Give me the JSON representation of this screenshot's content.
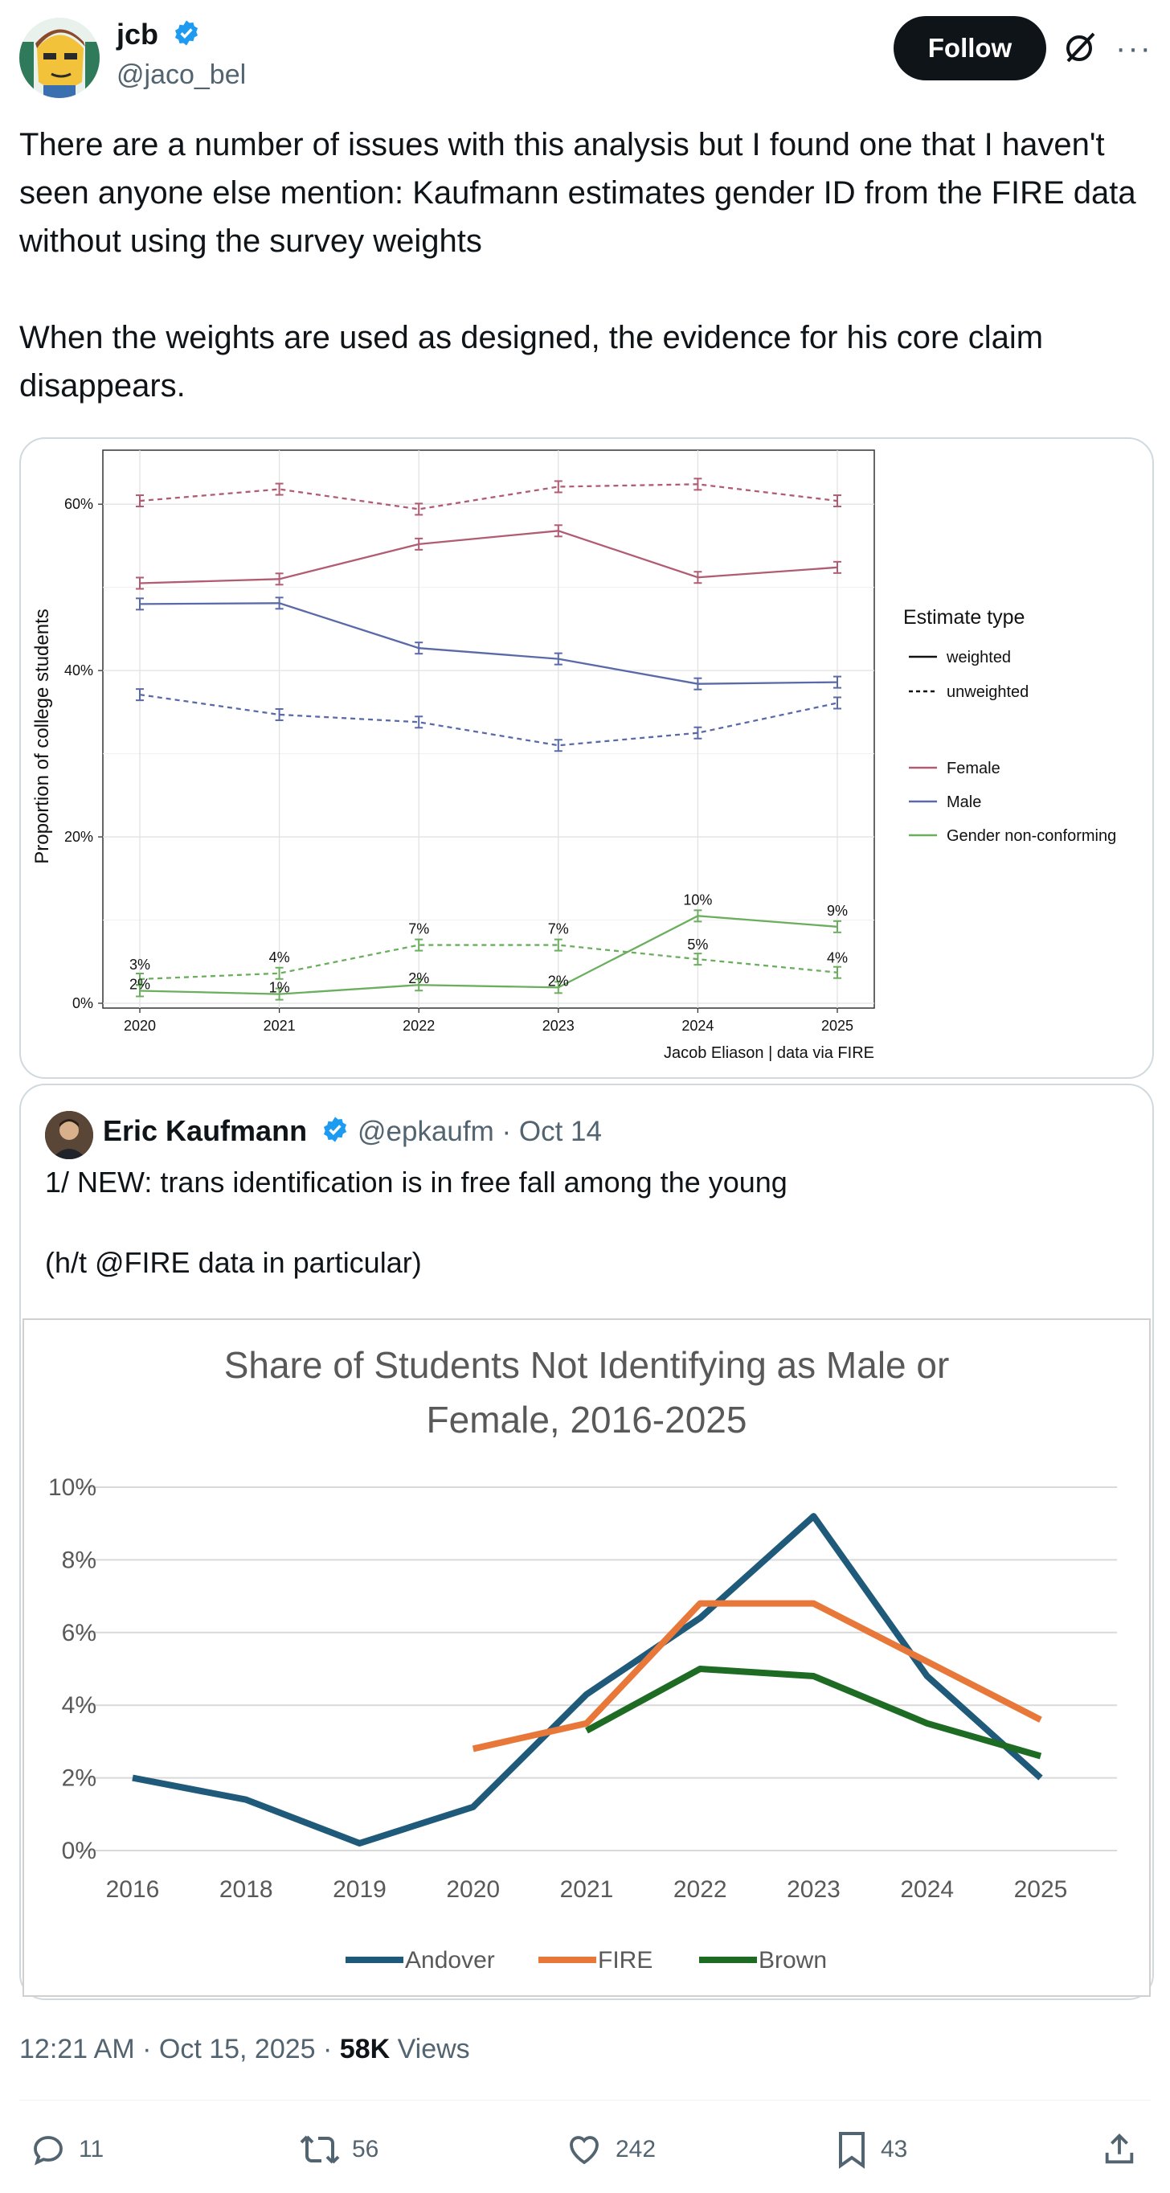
{
  "author": {
    "name": "jcb",
    "handle": "@jaco_bel"
  },
  "follow_label": "Follow",
  "more_label": "···",
  "tweet_text": "There are a number of issues with this analysis but I found one that I haven't seen anyone else mention: Kaufmann estimates gender ID from the FIRE data without using the survey weights\n\nWhen the weights are used as designed, the evidence for his core claim disappears.",
  "chart1": {
    "ylabel": "Proportion of college students",
    "caption": "Jacob Eliason | data via FIRE",
    "legend_title": "Estimate type",
    "legend_weighted": "weighted",
    "legend_unweighted": "unweighted",
    "legend_female": "Female",
    "legend_male": "Male",
    "legend_gnc": "Gender non-conforming",
    "yticks": [
      "0%",
      "20%",
      "40%",
      "60%"
    ],
    "xticks": [
      "2020",
      "2021",
      "2022",
      "2023",
      "2024",
      "2025"
    ],
    "gnc_weighted_labels": [
      "2%",
      "1%",
      "2%",
      "2%",
      "10%",
      "9%"
    ],
    "gnc_unweighted_labels": [
      "3%",
      "4%",
      "7%",
      "7%",
      "5%",
      "4%"
    ],
    "colors": {
      "female": "#b05c72",
      "male": "#5a6aa8",
      "gnc": "#6aae5e"
    }
  },
  "chart_data": [
    {
      "type": "line",
      "x": [
        2020,
        2021,
        2022,
        2023,
        2024,
        2025
      ],
      "xlabel": "",
      "ylabel": "Proportion of college students",
      "ylim": [
        0,
        0.66
      ],
      "legend": "right",
      "series": [
        {
          "name": "Female weighted",
          "values": [
            0.505,
            0.51,
            0.552,
            0.568,
            0.512,
            0.524
          ]
        },
        {
          "name": "Female unweighted",
          "values": [
            0.604,
            0.618,
            0.594,
            0.621,
            0.624,
            0.604
          ]
        },
        {
          "name": "Male weighted",
          "values": [
            0.48,
            0.481,
            0.427,
            0.414,
            0.384,
            0.386
          ]
        },
        {
          "name": "Male unweighted",
          "values": [
            0.371,
            0.347,
            0.338,
            0.31,
            0.325,
            0.361
          ]
        },
        {
          "name": "Gender non-conforming weighted",
          "values": [
            0.015,
            0.011,
            0.022,
            0.019,
            0.105,
            0.092
          ]
        },
        {
          "name": "Gender non-conforming unweighted",
          "values": [
            0.029,
            0.036,
            0.07,
            0.07,
            0.053,
            0.037
          ]
        }
      ]
    },
    {
      "type": "line",
      "title": "Share of Students Not Identifying as Male or Female, 2016-2025",
      "categories": [
        "2016",
        "2018",
        "2019",
        "2020",
        "2021",
        "2022",
        "2023",
        "2024",
        "2025"
      ],
      "yticks": [
        "0%",
        "2%",
        "4%",
        "6%",
        "8%",
        "10%"
      ],
      "ylim": [
        0,
        10
      ],
      "legend": "bottom",
      "series": [
        {
          "name": "Andover",
          "color": "#1f5a7a",
          "values": [
            2.0,
            1.4,
            0.2,
            1.2,
            4.3,
            6.4,
            9.2,
            4.8,
            2.0
          ]
        },
        {
          "name": "FIRE",
          "color": "#e8773a",
          "values": [
            null,
            null,
            null,
            2.8,
            3.5,
            6.8,
            6.8,
            5.2,
            3.6
          ]
        },
        {
          "name": "Brown",
          "color": "#1e6b24",
          "values": [
            null,
            null,
            null,
            null,
            3.3,
            5.0,
            4.8,
            3.5,
            2.6
          ]
        }
      ]
    }
  ],
  "quote": {
    "name": "Eric Kaufmann",
    "handle": "@epkaufm · Oct 14",
    "text": "1/ NEW: trans identification is in free fall among the young\n\n(h/t @FIRE data in particular)"
  },
  "chart2": {
    "title_line1": "Share of Students Not Identifying as Male or",
    "title_line2": "Female, 2016-2025"
  },
  "meta": {
    "time": "12:21 AM · Oct 15, 2025 · ",
    "views_count": "58K",
    "views_label": " Views"
  },
  "actions": {
    "replies": "11",
    "reposts": "56",
    "likes": "242",
    "bookmarks": "43"
  }
}
